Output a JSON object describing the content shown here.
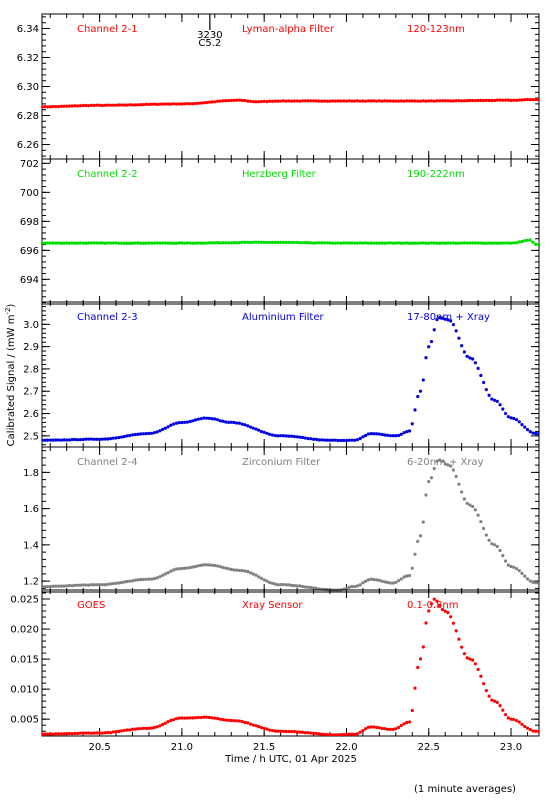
{
  "figure": {
    "ylabel": "Calibrated Signal / (mW m",
    "ylabel_sup": "-2",
    "ylabel_end": ")",
    "xlabel": "Time / h UTC, 01 Apr 2025",
    "footnote": "(1 minute averages)",
    "event_marker": {
      "label_top": "3230",
      "label_bottom": "C5.2",
      "x": 21.17
    }
  },
  "chart_data": [
    {
      "type": "scatter",
      "channel": "Channel 2-1",
      "filter": "Lyman-alpha Filter",
      "band": "120-123nm",
      "color": "#ff0000",
      "ylim": [
        6.25,
        6.35
      ],
      "yticks": [
        6.26,
        6.28,
        6.3,
        6.32,
        6.34
      ],
      "ytick_labels": [
        "6.26",
        "6.28",
        "6.30",
        "6.32",
        "6.34"
      ],
      "series": [
        {
          "x": [
            20.15,
            20.5,
            21.0,
            21.35,
            21.45,
            21.6,
            22.0,
            22.5,
            23.0,
            23.15
          ],
          "y": [
            6.286,
            6.287,
            6.288,
            6.2905,
            6.2895,
            6.29,
            6.29,
            6.29,
            6.2905,
            6.291
          ]
        }
      ]
    },
    {
      "type": "scatter",
      "channel": "Channel 2-2",
      "filter": "Herzberg Filter",
      "band": "190-222nm",
      "color": "#00dd00",
      "ylim": [
        692.3,
        702.3
      ],
      "yticks": [
        694,
        696,
        698,
        700,
        702
      ],
      "ytick_labels": [
        "694",
        "696",
        "698",
        "700",
        "702"
      ],
      "series": [
        {
          "x": [
            20.15,
            20.5,
            21.0,
            21.5,
            22.0,
            22.5,
            23.0,
            23.12,
            23.15
          ],
          "y": [
            696.5,
            696.5,
            696.5,
            696.55,
            696.5,
            696.5,
            696.5,
            696.7,
            696.4
          ]
        }
      ]
    },
    {
      "type": "scatter",
      "channel": "Channel 2-3",
      "filter": "Aluminium Filter",
      "band": "17-80nm + Xray",
      "color": "#0000dd",
      "ylim": [
        2.45,
        3.1
      ],
      "yticks": [
        2.5,
        2.6,
        2.7,
        2.8,
        2.9,
        3.0
      ],
      "ytick_labels": [
        "2.5",
        "2.6",
        "2.7",
        "2.8",
        "2.9",
        "3.0"
      ],
      "series": [
        {
          "x": [
            20.15,
            20.5,
            20.8,
            21.0,
            21.15,
            21.3,
            21.6,
            21.9,
            22.05,
            22.15,
            22.3,
            22.38,
            22.45,
            22.5,
            22.56,
            22.62,
            22.75,
            22.9,
            23.0,
            23.15
          ],
          "y": [
            2.48,
            2.485,
            2.51,
            2.56,
            2.58,
            2.56,
            2.5,
            2.48,
            2.48,
            2.51,
            2.5,
            2.52,
            2.7,
            2.9,
            3.03,
            3.02,
            2.85,
            2.66,
            2.58,
            2.51
          ]
        }
      ]
    },
    {
      "type": "scatter",
      "channel": "Channel 2-4",
      "filter": "Zirconium Filter",
      "band": "6-20nm + Xray",
      "color": "#808080",
      "ylim": [
        1.14,
        1.94
      ],
      "yticks": [
        1.2,
        1.4,
        1.6,
        1.8
      ],
      "ytick_labels": [
        "1.2",
        "1.4",
        "1.6",
        "1.8"
      ],
      "series": [
        {
          "x": [
            20.15,
            20.5,
            20.8,
            21.0,
            21.15,
            21.35,
            21.6,
            21.95,
            22.05,
            22.15,
            22.28,
            22.38,
            22.45,
            22.5,
            22.56,
            22.62,
            22.75,
            22.9,
            23.0,
            23.15
          ],
          "y": [
            1.17,
            1.18,
            1.21,
            1.27,
            1.29,
            1.26,
            1.18,
            1.15,
            1.17,
            1.21,
            1.19,
            1.23,
            1.45,
            1.75,
            1.87,
            1.84,
            1.62,
            1.4,
            1.28,
            1.19
          ]
        }
      ]
    },
    {
      "type": "scatter",
      "channel": "GOES",
      "filter": "Xray Sensor",
      "band": "0.1-0.8nm",
      "color": "#ff0000",
      "ylim": [
        0.0022,
        0.0265
      ],
      "yticks": [
        0.005,
        0.01,
        0.015,
        0.02,
        0.025
      ],
      "ytick_labels": [
        "0.005",
        "0.010",
        "0.015",
        "0.020",
        "0.025"
      ],
      "series": [
        {
          "x": [
            20.15,
            20.5,
            20.8,
            21.0,
            21.15,
            21.3,
            21.6,
            21.95,
            22.05,
            22.15,
            22.28,
            22.38,
            22.45,
            22.5,
            22.53,
            22.6,
            22.75,
            22.9,
            23.0,
            23.15
          ],
          "y": [
            0.0025,
            0.0027,
            0.0035,
            0.0052,
            0.0053,
            0.0048,
            0.003,
            0.0024,
            0.0025,
            0.0037,
            0.0033,
            0.0045,
            0.015,
            0.023,
            0.025,
            0.023,
            0.015,
            0.008,
            0.005,
            0.003
          ]
        }
      ]
    }
  ],
  "x_axis": {
    "range": [
      20.15,
      23.17
    ],
    "ticks": [
      20.5,
      21.0,
      21.5,
      22.0,
      22.5,
      23.0
    ],
    "tick_labels": [
      "20.5",
      "21.0",
      "21.5",
      "22.0",
      "22.5",
      "23.0"
    ]
  }
}
